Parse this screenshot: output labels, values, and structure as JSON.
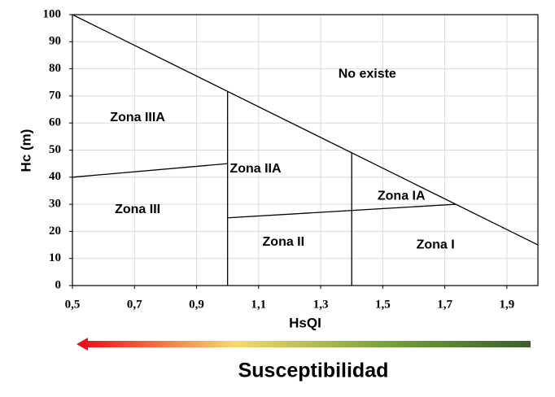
{
  "chart_data": {
    "type": "line",
    "x_label": "HsQI",
    "y_label": "Hc (m)",
    "xlim": [
      0.5,
      2.0
    ],
    "ylim": [
      0,
      100
    ],
    "xticks": [
      {
        "value": 0.5,
        "label": "0,5"
      },
      {
        "value": 0.7,
        "label": "0,7"
      },
      {
        "value": 0.9,
        "label": "0,9"
      },
      {
        "value": 1.1,
        "label": "1,1"
      },
      {
        "value": 1.3,
        "label": "1,3"
      },
      {
        "value": 1.5,
        "label": "1,5"
      },
      {
        "value": 1.7,
        "label": "1,7"
      },
      {
        "value": 1.9,
        "label": "1,9"
      }
    ],
    "yticks": [
      0,
      10,
      20,
      30,
      40,
      50,
      60,
      70,
      80,
      90,
      100
    ],
    "grid": true,
    "series": [
      {
        "color": "#000000",
        "x": [
          0.5,
          2.0
        ],
        "values": [
          100,
          15
        ]
      },
      {
        "color": "#000000",
        "x": [
          0.5,
          1.0
        ],
        "values": [
          40,
          45
        ]
      },
      {
        "color": "#000000",
        "x": [
          1.0,
          1.0
        ],
        "values": [
          0,
          71.7
        ]
      },
      {
        "color": "#000000",
        "x": [
          1.0,
          1.735
        ],
        "values": [
          25,
          30
        ]
      },
      {
        "color": "#000000",
        "x": [
          1.4,
          1.4
        ],
        "values": [
          0,
          49
        ]
      }
    ],
    "annotations": [
      {
        "text": "No existe",
        "x": 1.45,
        "y": 78
      },
      {
        "text": "Zona IIIA",
        "x": 0.71,
        "y": 62
      },
      {
        "text": "Zona IIA",
        "x": 1.09,
        "y": 43
      },
      {
        "text": "Zona IA",
        "x": 1.56,
        "y": 33
      },
      {
        "text": "Zona III",
        "x": 0.71,
        "y": 28
      },
      {
        "text": "Zona II",
        "x": 1.18,
        "y": 16
      },
      {
        "text": "Zona I",
        "x": 1.67,
        "y": 15
      }
    ],
    "arrow": {
      "label": "Susceptibilidad",
      "colors": [
        "#e8141c",
        "#f7d96b",
        "#7aa33c",
        "#3b5e2b"
      ]
    }
  }
}
